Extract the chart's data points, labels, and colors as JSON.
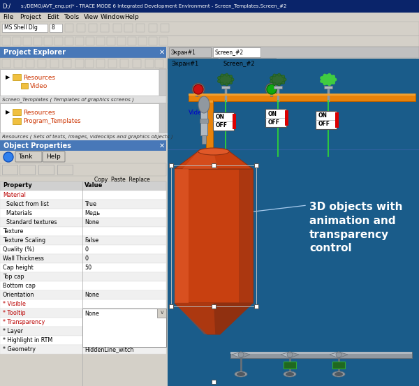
{
  "title": "s:/DEMO/AVT_eng.prj* - TRACE MODE 6 Integrated Development Environment - Screen_Templates.Screen_#2",
  "menu_items": [
    "File",
    "Project",
    "Edit",
    "Tools",
    "View",
    "Window",
    "Help"
  ],
  "panel_bg": "#d4d0c8",
  "ide_bg": "#1a5c8a",
  "pipe_orange": "#e8820a",
  "pipe_orange_dark": "#b86000",
  "pipe_orange_light": "#f0a030",
  "tank_main": "#c84010",
  "tank_light": "#e05828",
  "tank_dark": "#903010",
  "gray_mid": "#9098a0",
  "gray_light": "#b0b8c0",
  "gray_dark": "#687078",
  "green_valve": "#206820",
  "green_bright": "#40c040",
  "red_led": "#cc1010",
  "green_led": "#10aa10",
  "panel_title_bg": "#4878b8",
  "white": "#ffffff",
  "annotation_text": "3D objects with\nanimation and\ntransparency\ncontrol",
  "property_rows": [
    [
      "Property",
      "Value"
    ],
    [
      "Material",
      ""
    ],
    [
      "  Select from list",
      "True"
    ],
    [
      "  Materials",
      "Медь"
    ],
    [
      "  Standard textures",
      "None"
    ],
    [
      "Texture",
      ""
    ],
    [
      "Texture Scaling",
      "False"
    ],
    [
      "Quality (%)",
      "0"
    ],
    [
      "Wall Thickness",
      "0"
    ],
    [
      "Cap height",
      "50"
    ],
    [
      "Top cap",
      ""
    ],
    [
      "Bottom cap",
      ""
    ],
    [
      "Orientation",
      "None"
    ],
    [
      "* Visible",
      ""
    ],
    [
      "* Tooltip",
      ""
    ],
    [
      "* Transparency",
      ""
    ],
    [
      "* Layer",
      ""
    ],
    [
      "* Highlight in RTM",
      ""
    ],
    [
      "* Geometry",
      "HiddenLine_witch"
    ]
  ],
  "red_rows": [
    "Material",
    "* Visible",
    "* Tooltip",
    "* Transparency"
  ]
}
